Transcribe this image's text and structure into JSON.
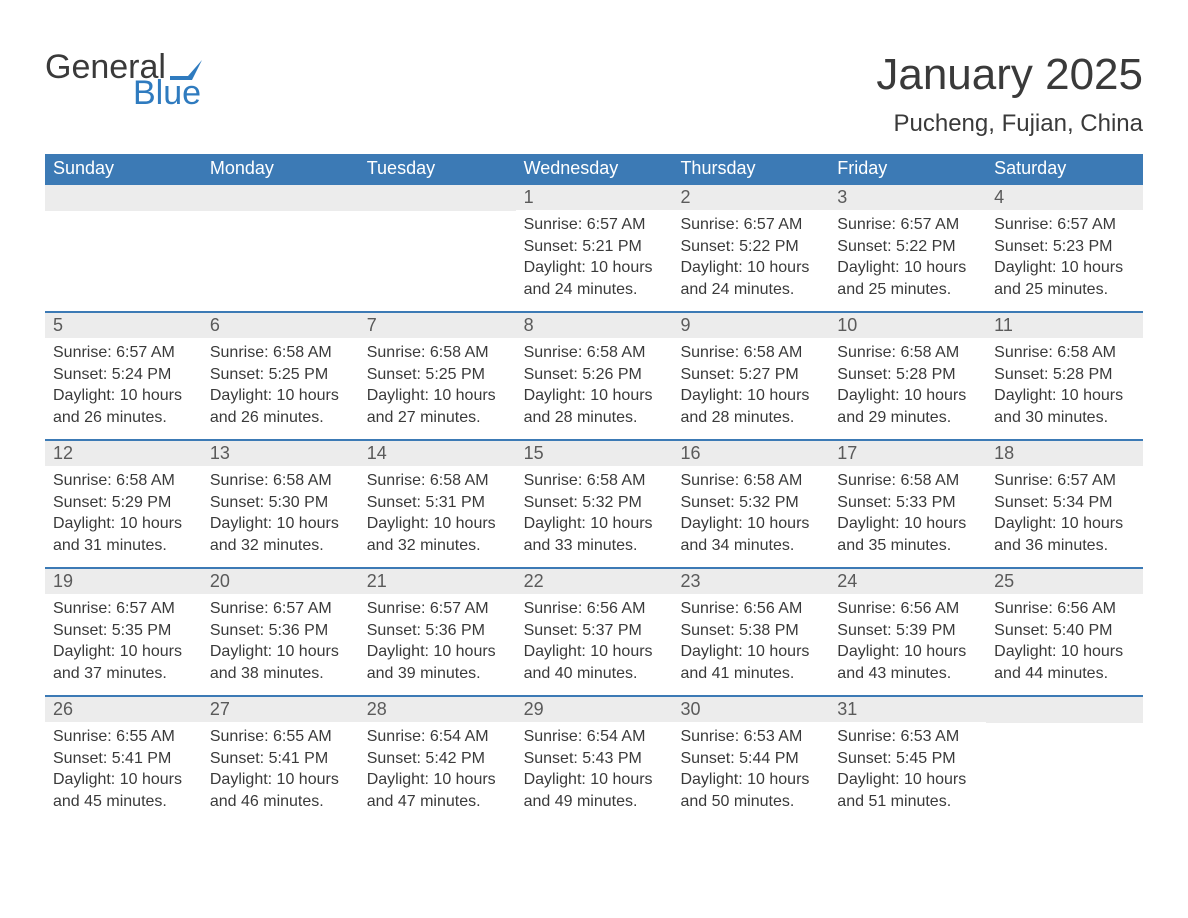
{
  "logo": {
    "text1": "General",
    "text2": "Blue",
    "flag_color": "#2f7bbf"
  },
  "header": {
    "title": "January 2025",
    "location": "Pucheng, Fujian, China"
  },
  "colors": {
    "header_bg": "#3c7ab5",
    "header_text": "#ffffff",
    "daynum_bg": "#ececec",
    "text": "#3a3a3a",
    "row_border": "#3c7ab5"
  },
  "weekdays": [
    "Sunday",
    "Monday",
    "Tuesday",
    "Wednesday",
    "Thursday",
    "Friday",
    "Saturday"
  ],
  "weeks": [
    [
      {
        "empty": true
      },
      {
        "empty": true
      },
      {
        "empty": true
      },
      {
        "day": "1",
        "sunrise": "Sunrise: 6:57 AM",
        "sunset": "Sunset: 5:21 PM",
        "daylight": "Daylight: 10 hours and 24 minutes."
      },
      {
        "day": "2",
        "sunrise": "Sunrise: 6:57 AM",
        "sunset": "Sunset: 5:22 PM",
        "daylight": "Daylight: 10 hours and 24 minutes."
      },
      {
        "day": "3",
        "sunrise": "Sunrise: 6:57 AM",
        "sunset": "Sunset: 5:22 PM",
        "daylight": "Daylight: 10 hours and 25 minutes."
      },
      {
        "day": "4",
        "sunrise": "Sunrise: 6:57 AM",
        "sunset": "Sunset: 5:23 PM",
        "daylight": "Daylight: 10 hours and 25 minutes."
      }
    ],
    [
      {
        "day": "5",
        "sunrise": "Sunrise: 6:57 AM",
        "sunset": "Sunset: 5:24 PM",
        "daylight": "Daylight: 10 hours and 26 minutes."
      },
      {
        "day": "6",
        "sunrise": "Sunrise: 6:58 AM",
        "sunset": "Sunset: 5:25 PM",
        "daylight": "Daylight: 10 hours and 26 minutes."
      },
      {
        "day": "7",
        "sunrise": "Sunrise: 6:58 AM",
        "sunset": "Sunset: 5:25 PM",
        "daylight": "Daylight: 10 hours and 27 minutes."
      },
      {
        "day": "8",
        "sunrise": "Sunrise: 6:58 AM",
        "sunset": "Sunset: 5:26 PM",
        "daylight": "Daylight: 10 hours and 28 minutes."
      },
      {
        "day": "9",
        "sunrise": "Sunrise: 6:58 AM",
        "sunset": "Sunset: 5:27 PM",
        "daylight": "Daylight: 10 hours and 28 minutes."
      },
      {
        "day": "10",
        "sunrise": "Sunrise: 6:58 AM",
        "sunset": "Sunset: 5:28 PM",
        "daylight": "Daylight: 10 hours and 29 minutes."
      },
      {
        "day": "11",
        "sunrise": "Sunrise: 6:58 AM",
        "sunset": "Sunset: 5:28 PM",
        "daylight": "Daylight: 10 hours and 30 minutes."
      }
    ],
    [
      {
        "day": "12",
        "sunrise": "Sunrise: 6:58 AM",
        "sunset": "Sunset: 5:29 PM",
        "daylight": "Daylight: 10 hours and 31 minutes."
      },
      {
        "day": "13",
        "sunrise": "Sunrise: 6:58 AM",
        "sunset": "Sunset: 5:30 PM",
        "daylight": "Daylight: 10 hours and 32 minutes."
      },
      {
        "day": "14",
        "sunrise": "Sunrise: 6:58 AM",
        "sunset": "Sunset: 5:31 PM",
        "daylight": "Daylight: 10 hours and 32 minutes."
      },
      {
        "day": "15",
        "sunrise": "Sunrise: 6:58 AM",
        "sunset": "Sunset: 5:32 PM",
        "daylight": "Daylight: 10 hours and 33 minutes."
      },
      {
        "day": "16",
        "sunrise": "Sunrise: 6:58 AM",
        "sunset": "Sunset: 5:32 PM",
        "daylight": "Daylight: 10 hours and 34 minutes."
      },
      {
        "day": "17",
        "sunrise": "Sunrise: 6:58 AM",
        "sunset": "Sunset: 5:33 PM",
        "daylight": "Daylight: 10 hours and 35 minutes."
      },
      {
        "day": "18",
        "sunrise": "Sunrise: 6:57 AM",
        "sunset": "Sunset: 5:34 PM",
        "daylight": "Daylight: 10 hours and 36 minutes."
      }
    ],
    [
      {
        "day": "19",
        "sunrise": "Sunrise: 6:57 AM",
        "sunset": "Sunset: 5:35 PM",
        "daylight": "Daylight: 10 hours and 37 minutes."
      },
      {
        "day": "20",
        "sunrise": "Sunrise: 6:57 AM",
        "sunset": "Sunset: 5:36 PM",
        "daylight": "Daylight: 10 hours and 38 minutes."
      },
      {
        "day": "21",
        "sunrise": "Sunrise: 6:57 AM",
        "sunset": "Sunset: 5:36 PM",
        "daylight": "Daylight: 10 hours and 39 minutes."
      },
      {
        "day": "22",
        "sunrise": "Sunrise: 6:56 AM",
        "sunset": "Sunset: 5:37 PM",
        "daylight": "Daylight: 10 hours and 40 minutes."
      },
      {
        "day": "23",
        "sunrise": "Sunrise: 6:56 AM",
        "sunset": "Sunset: 5:38 PM",
        "daylight": "Daylight: 10 hours and 41 minutes."
      },
      {
        "day": "24",
        "sunrise": "Sunrise: 6:56 AM",
        "sunset": "Sunset: 5:39 PM",
        "daylight": "Daylight: 10 hours and 43 minutes."
      },
      {
        "day": "25",
        "sunrise": "Sunrise: 6:56 AM",
        "sunset": "Sunset: 5:40 PM",
        "daylight": "Daylight: 10 hours and 44 minutes."
      }
    ],
    [
      {
        "day": "26",
        "sunrise": "Sunrise: 6:55 AM",
        "sunset": "Sunset: 5:41 PM",
        "daylight": "Daylight: 10 hours and 45 minutes."
      },
      {
        "day": "27",
        "sunrise": "Sunrise: 6:55 AM",
        "sunset": "Sunset: 5:41 PM",
        "daylight": "Daylight: 10 hours and 46 minutes."
      },
      {
        "day": "28",
        "sunrise": "Sunrise: 6:54 AM",
        "sunset": "Sunset: 5:42 PM",
        "daylight": "Daylight: 10 hours and 47 minutes."
      },
      {
        "day": "29",
        "sunrise": "Sunrise: 6:54 AM",
        "sunset": "Sunset: 5:43 PM",
        "daylight": "Daylight: 10 hours and 49 minutes."
      },
      {
        "day": "30",
        "sunrise": "Sunrise: 6:53 AM",
        "sunset": "Sunset: 5:44 PM",
        "daylight": "Daylight: 10 hours and 50 minutes."
      },
      {
        "day": "31",
        "sunrise": "Sunrise: 6:53 AM",
        "sunset": "Sunset: 5:45 PM",
        "daylight": "Daylight: 10 hours and 51 minutes."
      },
      {
        "empty": true
      }
    ]
  ]
}
